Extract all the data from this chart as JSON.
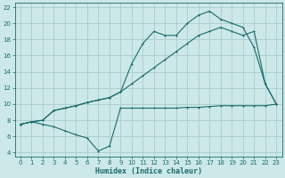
{
  "bg_color": "#cce8e8",
  "line_color": "#1a6b6b",
  "grid_color": "#aacccc",
  "xlabel": "Humidex (Indice chaleur)",
  "xlim": [
    -0.5,
    23.5
  ],
  "ylim": [
    3.5,
    22.5
  ],
  "yticks": [
    4,
    6,
    8,
    10,
    12,
    14,
    16,
    18,
    20,
    22
  ],
  "xticks": [
    0,
    1,
    2,
    3,
    4,
    5,
    6,
    7,
    8,
    9,
    10,
    11,
    12,
    13,
    14,
    15,
    16,
    17,
    18,
    19,
    20,
    21,
    22,
    23
  ],
  "line1_x": [
    0,
    1,
    2,
    3,
    4,
    5,
    6,
    7,
    8,
    9,
    10,
    11,
    12,
    13,
    14,
    15,
    16,
    17,
    18,
    19,
    20,
    21,
    22,
    23
  ],
  "line1_y": [
    7.5,
    7.8,
    8.0,
    9.2,
    9.5,
    9.8,
    10.2,
    10.5,
    10.8,
    11.5,
    12.5,
    13.5,
    14.5,
    15.5,
    16.5,
    17.5,
    18.5,
    19.0,
    19.5,
    19.0,
    18.5,
    19.0,
    12.5,
    10.0
  ],
  "line2_x": [
    0,
    1,
    2,
    3,
    4,
    5,
    6,
    7,
    8,
    9,
    10,
    11,
    12,
    13,
    14,
    15,
    16,
    17,
    18,
    19,
    20,
    21,
    22,
    23
  ],
  "line2_y": [
    7.5,
    7.8,
    8.0,
    9.2,
    9.5,
    9.8,
    10.2,
    10.5,
    10.8,
    11.5,
    15.0,
    17.5,
    19.0,
    18.5,
    18.5,
    20.0,
    21.0,
    21.5,
    20.5,
    20.0,
    19.5,
    17.0,
    12.5,
    10.0
  ],
  "line3_x": [
    0,
    1,
    2,
    3,
    4,
    5,
    6,
    7,
    8,
    9,
    10,
    11,
    12,
    13,
    14,
    15,
    16,
    17,
    18,
    19,
    20,
    21,
    22,
    23
  ],
  "line3_y": [
    7.5,
    7.8,
    7.5,
    7.2,
    6.7,
    6.2,
    5.8,
    4.2,
    4.8,
    9.5,
    9.5,
    9.5,
    9.5,
    9.5,
    9.5,
    9.6,
    9.6,
    9.7,
    9.8,
    9.8,
    9.8,
    9.8,
    9.8,
    10.0
  ]
}
